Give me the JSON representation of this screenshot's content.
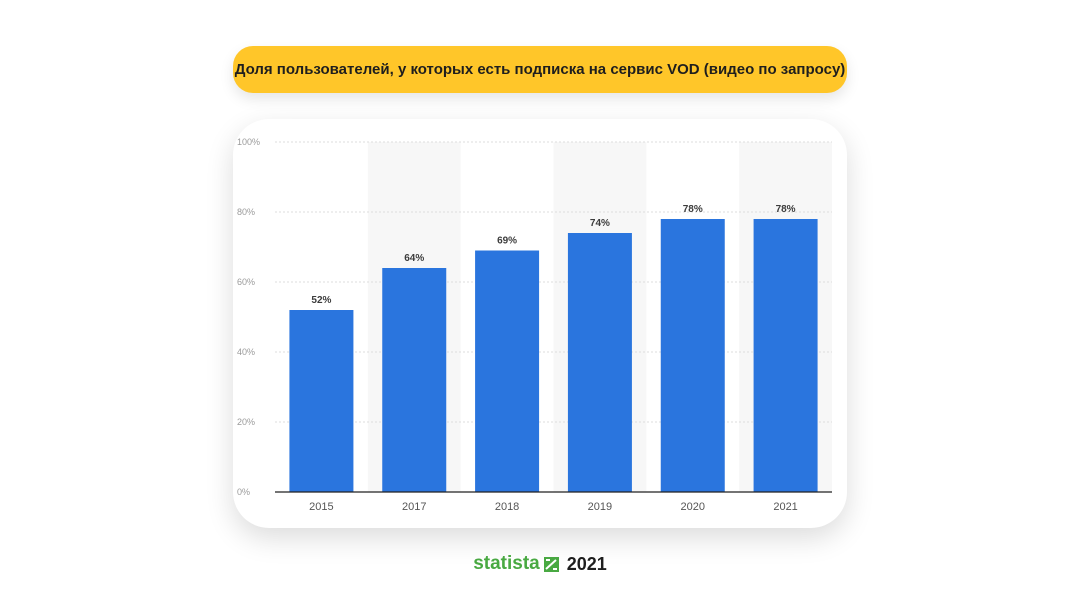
{
  "title": "Доля пользователей, у которых есть подписка на сервис VOD (видео по запросу)",
  "footer": {
    "brand": "statista",
    "year": "2021"
  },
  "colors": {
    "bar": "#2a75de",
    "title_bg": "#ffc629",
    "brand": "#49a942"
  },
  "chart_data": {
    "type": "bar",
    "title": "Доля пользователей, у которых есть подписка на сервис VOD (видео по запросу)",
    "categories": [
      "2015",
      "2017",
      "2018",
      "2019",
      "2020",
      "2021"
    ],
    "values": [
      52,
      64,
      69,
      74,
      78,
      78
    ],
    "data_labels": [
      "52%",
      "64%",
      "69%",
      "74%",
      "78%",
      "78%"
    ],
    "ylim": [
      0,
      100
    ],
    "yticks": [
      0,
      20,
      40,
      60,
      80,
      100
    ],
    "ytick_labels": [
      "0%",
      "20%",
      "40%",
      "60%",
      "80%",
      "100%"
    ],
    "xlabel": "",
    "ylabel": "",
    "grid": true,
    "alternating_column_shading": true
  }
}
